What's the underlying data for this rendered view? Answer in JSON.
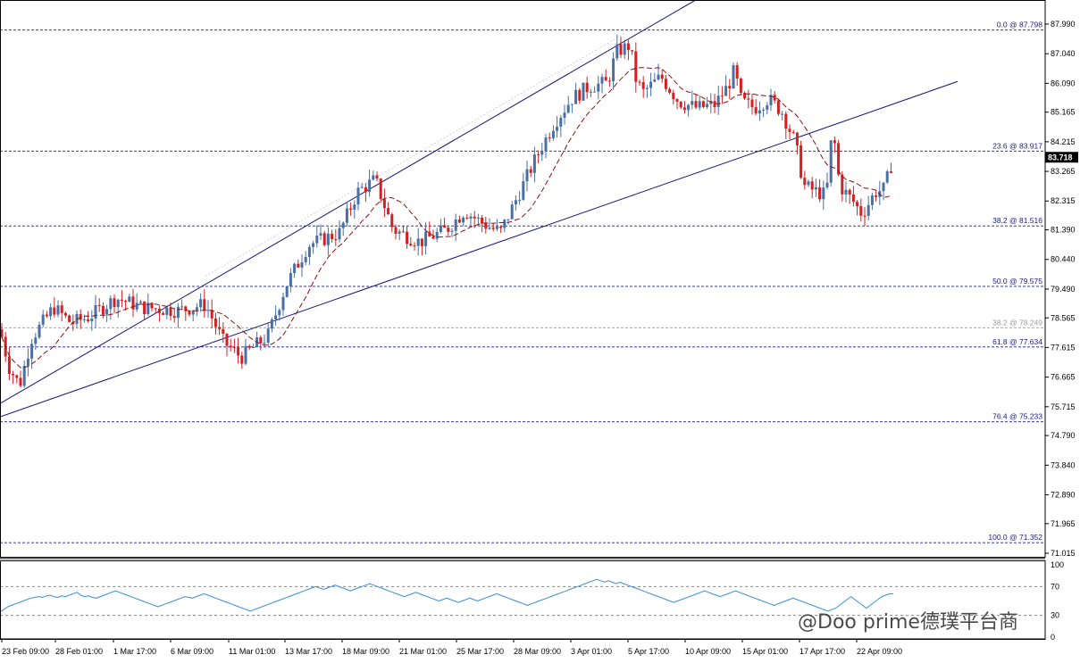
{
  "chart_data": {
    "type": "candlestick",
    "instrument_note": "",
    "price_axis": {
      "ylim": [
        71.015,
        87.99
      ],
      "ticks": [
        87.99,
        87.04,
        86.09,
        85.165,
        84.215,
        83.265,
        82.315,
        81.39,
        80.44,
        79.49,
        78.565,
        77.615,
        76.665,
        75.715,
        74.79,
        73.84,
        72.89,
        71.965,
        71.015
      ],
      "tick_labels": [
        "87.990",
        "87.040",
        "86.090",
        "85.165",
        "84.215",
        "83.265",
        "82.315",
        "81.390",
        "80.440",
        "79.490",
        "78.565",
        "77.615",
        "76.665",
        "75.715",
        "74.790",
        "73.840",
        "72.890",
        "71.965",
        "71.015"
      ]
    },
    "current_price": {
      "value": 83.718,
      "label": "83.718"
    },
    "fibonacci_levels": [
      {
        "value": 87.798,
        "label": "0.0 @ 87.798",
        "color": "#1a1a8c"
      },
      {
        "value": 83.917,
        "label": "23.6 @ 83.917",
        "color": "#1a1a8c"
      },
      {
        "value": 81.516,
        "label": "38.2 @ 81.516",
        "color": "#1a1a8c"
      },
      {
        "value": 79.575,
        "label": "50.0 @ 79.575",
        "color": "#1a1a8c"
      },
      {
        "value": 78.249,
        "label": "38.2 @ 78.249",
        "color": "#9a9a9a"
      },
      {
        "value": 77.634,
        "label": "61.8 @ 77.634",
        "color": "#1a1a8c"
      },
      {
        "value": 75.233,
        "label": "76.4 @ 75.233",
        "color": "#1a1a8c"
      },
      {
        "value": 71.352,
        "label": "100.0 @ 71.352",
        "color": "#1a1a8c"
      }
    ],
    "channel_lines": [
      {
        "name": "upper",
        "x": [
          0,
          781
        ],
        "y": [
          75.82,
          88.8
        ]
      },
      {
        "name": "lower",
        "x": [
          0,
          1072
        ],
        "y": [
          75.39,
          86.15
        ]
      }
    ],
    "oscillator": {
      "ticks": [
        100,
        70,
        30,
        0
      ],
      "tick_labels": [
        "100",
        "70",
        "30",
        "0"
      ],
      "levels": [
        70,
        30
      ],
      "values": [
        35,
        38,
        42,
        44,
        46,
        48,
        50,
        52,
        54,
        55,
        56,
        55,
        57,
        58,
        56,
        55,
        57,
        56,
        58,
        60,
        62,
        58,
        56,
        57,
        55,
        54,
        56,
        58,
        60,
        62,
        64,
        62,
        60,
        58,
        56,
        54,
        52,
        50,
        48,
        46,
        44,
        42,
        44,
        46,
        48,
        50,
        52,
        54,
        56,
        55,
        54,
        56,
        58,
        60,
        58,
        56,
        54,
        52,
        50,
        48,
        46,
        44,
        42,
        40,
        38,
        36,
        38,
        40,
        42,
        44,
        46,
        48,
        50,
        52,
        54,
        56,
        58,
        60,
        62,
        64,
        66,
        68,
        70,
        68,
        66,
        68,
        70,
        72,
        70,
        68,
        66,
        64,
        66,
        68,
        70,
        72,
        74,
        72,
        70,
        68,
        66,
        64,
        62,
        60,
        58,
        56,
        58,
        60,
        62,
        60,
        58,
        56,
        54,
        52,
        50,
        52,
        54,
        52,
        50,
        48,
        50,
        52,
        54,
        52,
        50,
        52,
        54,
        56,
        58,
        60,
        58,
        56,
        54,
        52,
        50,
        48,
        46,
        44,
        46,
        48,
        50,
        52,
        54,
        56,
        58,
        60,
        62,
        64,
        66,
        68,
        70,
        72,
        74,
        76,
        78,
        80,
        78,
        76,
        78,
        76,
        74,
        76,
        74,
        72,
        70,
        68,
        66,
        64,
        62,
        60,
        58,
        56,
        54,
        52,
        50,
        48,
        50,
        52,
        54,
        56,
        58,
        60,
        62,
        64,
        62,
        60,
        58,
        56,
        58,
        60,
        62,
        64,
        62,
        60,
        58,
        56,
        54,
        52,
        50,
        48,
        46,
        44,
        46,
        48,
        50,
        52,
        54,
        52,
        50,
        48,
        46,
        44,
        42,
        40,
        38,
        36,
        38,
        40,
        44,
        48,
        52,
        56,
        52,
        48,
        44,
        40,
        44,
        48,
        52,
        56,
        58,
        60,
        60
      ]
    },
    "time_labels": [
      "23 Feb 09:00",
      "28 Feb 01:00",
      "1 Mar 17:00",
      "6 Mar 09:00",
      "11 Mar 01:00",
      "13 Mar 17:00",
      "18 Mar 09:00",
      "21 Mar 01:00",
      "25 Mar 17:00",
      "28 Mar 09:00",
      "3 Apr 01:00",
      "5 Apr 17:00",
      "10 Apr 09:00",
      "15 Apr 01:00",
      "17 Apr 17:00",
      "22 Apr 09:00"
    ],
    "colors": {
      "up": "#4a6fa5",
      "down": "#d42020",
      "ma": "#8b1010",
      "fib": "#1a1a8c",
      "osc": "#3a8fd6"
    },
    "watermark": "@Doo prime德璞平台商"
  }
}
